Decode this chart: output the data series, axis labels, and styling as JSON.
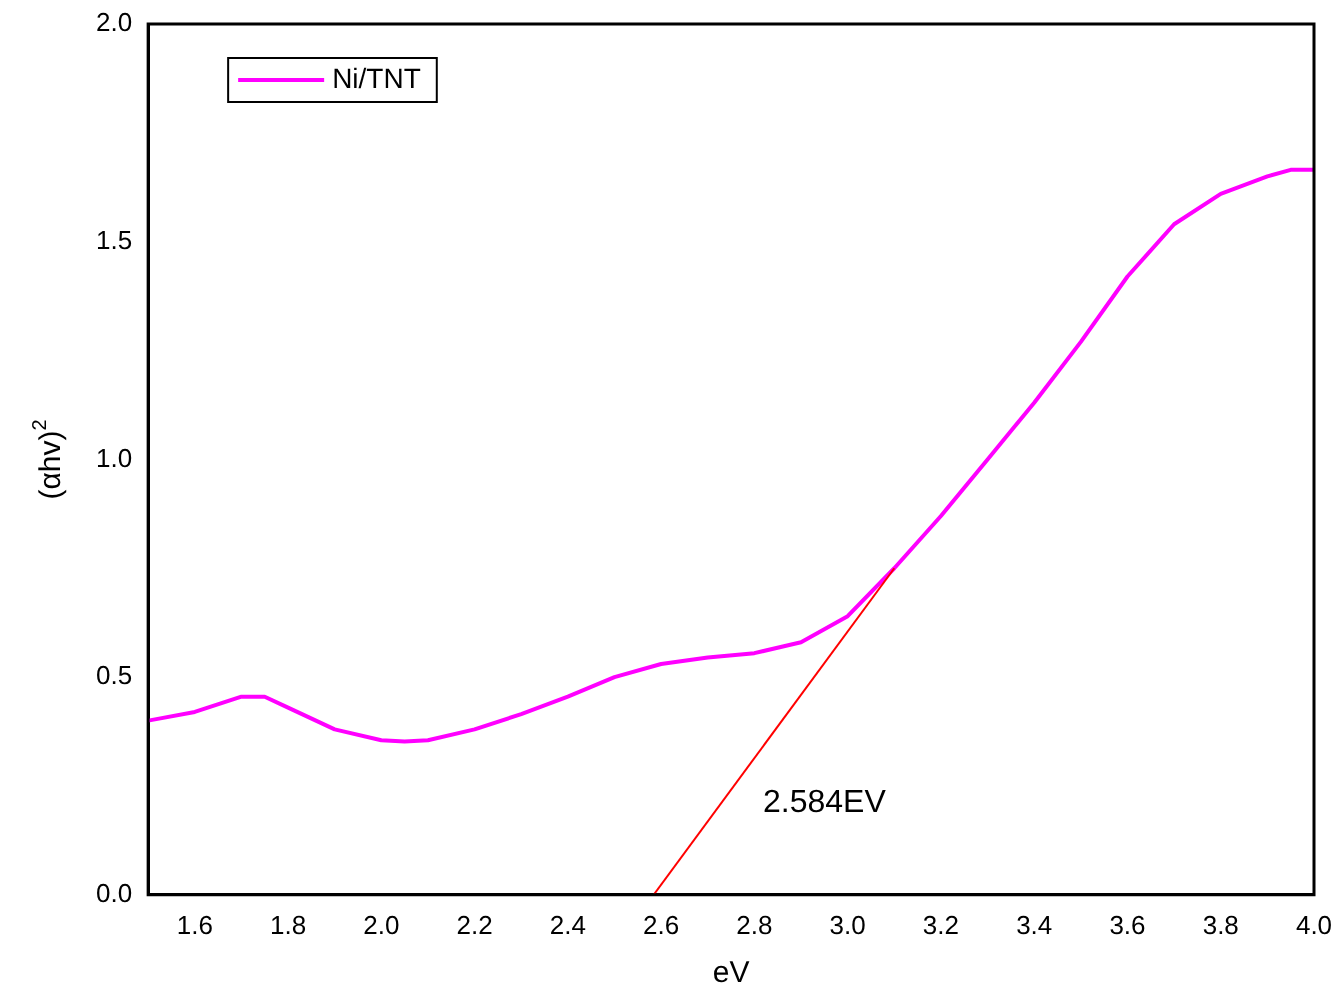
{
  "chart_data": {
    "type": "line",
    "xlabel": "eV",
    "ylabel": "(αhv)$^{2}$",
    "xlim": [
      1.5,
      4.0
    ],
    "ylim": [
      0,
      2.0
    ],
    "xticks": [
      1.6,
      1.8,
      {
        "value": 2,
        "label": "2.0"
      },
      2.2,
      2.4,
      2.6,
      2.8,
      {
        "value": 3,
        "label": "3.0"
      },
      3.2,
      3.4,
      3.6,
      3.8,
      {
        "value": 4,
        "label": "4.0"
      }
    ],
    "yticks": [
      {
        "value": 0,
        "label": "0.0"
      },
      0.5,
      {
        "value": 1,
        "label": "1.0"
      },
      1.5,
      {
        "value": 2,
        "label": "2.0"
      }
    ],
    "grid": false,
    "legend": "top left",
    "marker": "none",
    "line_style": "solid",
    "annotations": [
      "2.584EV"
    ],
    "series": [
      {
        "name": "Ni/TNT",
        "color": "#ff00ff",
        "x": [
          1.5,
          1.6,
          1.7,
          1.75,
          1.8,
          1.9,
          2.0,
          2.05,
          2.1,
          2.2,
          2.3,
          2.4,
          2.5,
          2.6,
          2.7,
          2.8,
          2.9,
          3.0,
          3.1,
          3.2,
          3.3,
          3.4,
          3.5,
          3.6,
          3.7,
          3.8,
          3.9,
          3.95,
          4.0
        ],
        "values": [
          0.4,
          0.42,
          0.455,
          0.455,
          0.43,
          0.38,
          0.355,
          0.352,
          0.355,
          0.38,
          0.415,
          0.455,
          0.5,
          0.53,
          0.545,
          0.555,
          0.58,
          0.64,
          0.75,
          0.87,
          1.0,
          1.13,
          1.27,
          1.42,
          1.54,
          1.61,
          1.65,
          1.665,
          1.665
        ]
      },
      {
        "type": "line",
        "color": "#ff0000",
        "x": [
          2.584,
          3.1
        ],
        "values": [
          0,
          0.75
        ]
      }
    ]
  }
}
